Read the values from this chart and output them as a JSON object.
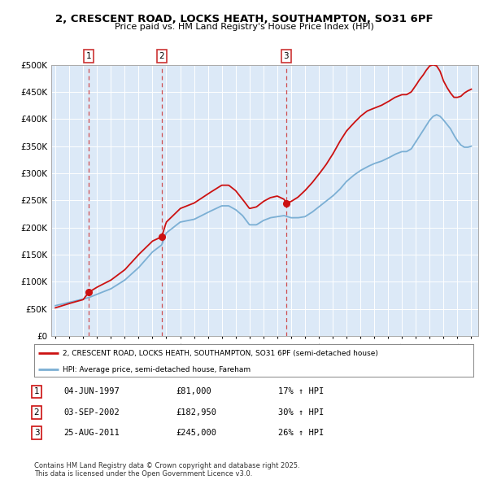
{
  "title": "2, CRESCENT ROAD, LOCKS HEATH, SOUTHAMPTON, SO31 6PF",
  "subtitle": "Price paid vs. HM Land Registry's House Price Index (HPI)",
  "bg_color": "#dce9f7",
  "hpi_color": "#7bafd4",
  "price_color": "#cc1111",
  "ylim": [
    0,
    500000
  ],
  "yticks": [
    0,
    50000,
    100000,
    150000,
    200000,
    250000,
    300000,
    350000,
    400000,
    450000,
    500000
  ],
  "ytick_labels": [
    "£0",
    "£50K",
    "£100K",
    "£150K",
    "£200K",
    "£250K",
    "£300K",
    "£350K",
    "£400K",
    "£450K",
    "£500K"
  ],
  "xlim_start": 1994.7,
  "xlim_end": 2025.5,
  "sales": [
    {
      "year": 1997.42,
      "price": 81000,
      "label": "1"
    },
    {
      "year": 2002.67,
      "price": 182950,
      "label": "2"
    },
    {
      "year": 2011.65,
      "price": 245000,
      "label": "3"
    }
  ],
  "vline_color": "#cc3333",
  "legend_entries": [
    "2, CRESCENT ROAD, LOCKS HEATH, SOUTHAMPTON, SO31 6PF (semi-detached house)",
    "HPI: Average price, semi-detached house, Fareham"
  ],
  "table_rows": [
    {
      "num": "1",
      "date": "04-JUN-1997",
      "price": "£81,000",
      "change": "17% ↑ HPI"
    },
    {
      "num": "2",
      "date": "03-SEP-2002",
      "price": "£182,950",
      "change": "30% ↑ HPI"
    },
    {
      "num": "3",
      "date": "25-AUG-2011",
      "price": "£245,000",
      "change": "26% ↑ HPI"
    }
  ],
  "footnote": "Contains HM Land Registry data © Crown copyright and database right 2025.\nThis data is licensed under the Open Government Licence v3.0.",
  "hpi_key_years": [
    1995.0,
    1996.0,
    1997.0,
    1997.42,
    1998.0,
    1999.0,
    2000.0,
    2001.0,
    2002.0,
    2002.67,
    2003.0,
    2004.0,
    2005.0,
    2006.0,
    2007.0,
    2007.5,
    2008.0,
    2008.5,
    2009.0,
    2009.5,
    2010.0,
    2010.5,
    2011.0,
    2011.5,
    2012.0,
    2012.5,
    2013.0,
    2013.5,
    2014.0,
    2014.5,
    2015.0,
    2015.5,
    2016.0,
    2016.5,
    2017.0,
    2017.5,
    2018.0,
    2018.5,
    2019.0,
    2019.5,
    2020.0,
    2020.33,
    2020.67,
    2021.0,
    2021.25,
    2021.5,
    2021.75,
    2022.0,
    2022.25,
    2022.5,
    2022.75,
    2023.0,
    2023.25,
    2023.5,
    2023.75,
    2024.0,
    2024.25,
    2024.5,
    2024.75,
    2025.0
  ],
  "hpi_key_vals": [
    56000,
    62000,
    68000,
    71000,
    77000,
    87000,
    103000,
    126000,
    155000,
    168000,
    190000,
    210000,
    215000,
    228000,
    240000,
    240000,
    233000,
    222000,
    205000,
    205000,
    213000,
    218000,
    220000,
    222000,
    218000,
    218000,
    220000,
    228000,
    238000,
    248000,
    258000,
    270000,
    285000,
    296000,
    305000,
    312000,
    318000,
    322000,
    328000,
    335000,
    340000,
    340000,
    345000,
    358000,
    368000,
    378000,
    388000,
    398000,
    405000,
    408000,
    405000,
    398000,
    390000,
    382000,
    370000,
    360000,
    352000,
    348000,
    348000,
    350000
  ],
  "price_key_years": [
    1995.0,
    1996.0,
    1997.0,
    1997.42,
    1998.0,
    1999.0,
    2000.0,
    2001.0,
    2002.0,
    2002.67,
    2003.0,
    2004.0,
    2005.0,
    2006.0,
    2007.0,
    2007.5,
    2008.0,
    2008.5,
    2009.0,
    2009.5,
    2010.0,
    2010.5,
    2011.0,
    2011.5,
    2011.65,
    2012.0,
    2012.5,
    2013.0,
    2013.5,
    2014.0,
    2014.5,
    2015.0,
    2015.5,
    2016.0,
    2016.5,
    2017.0,
    2017.5,
    2018.0,
    2018.5,
    2019.0,
    2019.5,
    2020.0,
    2020.33,
    2020.67,
    2021.0,
    2021.25,
    2021.5,
    2021.75,
    2022.0,
    2022.25,
    2022.5,
    2022.75,
    2023.0,
    2023.25,
    2023.5,
    2023.75,
    2024.0,
    2024.25,
    2024.5,
    2024.75,
    2025.0
  ],
  "price_key_vals": [
    52000,
    60000,
    67000,
    81000,
    90000,
    103000,
    122000,
    150000,
    175000,
    182950,
    210000,
    235000,
    245000,
    262000,
    278000,
    278000,
    268000,
    252000,
    235000,
    238000,
    248000,
    255000,
    258000,
    252000,
    245000,
    248000,
    256000,
    268000,
    282000,
    298000,
    315000,
    335000,
    358000,
    378000,
    392000,
    405000,
    415000,
    420000,
    425000,
    432000,
    440000,
    445000,
    445000,
    450000,
    462000,
    472000,
    480000,
    490000,
    498000,
    500000,
    498000,
    488000,
    470000,
    458000,
    448000,
    440000,
    440000,
    442000,
    448000,
    452000,
    455000
  ]
}
